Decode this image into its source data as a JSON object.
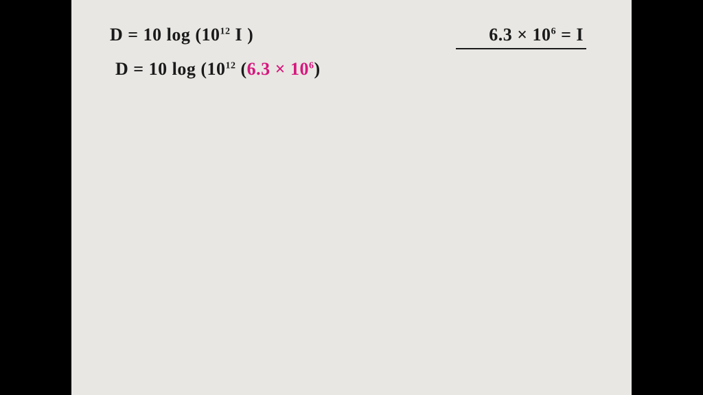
{
  "background_color": "#000000",
  "paper_color": "#e8e7e3",
  "ink_color": "#1a1a1a",
  "accent_color": "#d6177e",
  "font_family": "Comic Sans MS, Segoe Script, cursive",
  "font_size_main": 26,
  "font_size_super": 14,
  "equations": {
    "line1": {
      "prefix": "D = 10 log (10",
      "exp1": "12",
      "suffix": " I )"
    },
    "line2": {
      "prefix": "D = 10 log (10",
      "exp1": "12",
      "mid": " (",
      "sub_value": "6.3 × 10",
      "sub_exp": "6",
      "suffix": ")"
    },
    "line3": {
      "lhs_value": "6.3 × 10",
      "lhs_exp": "6",
      "rhs": " = I"
    }
  }
}
